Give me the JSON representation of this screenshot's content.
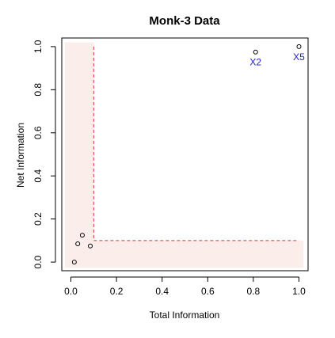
{
  "chart_data": {
    "type": "scatter",
    "title": "Monk-3 Data",
    "xlabel": "Total Information",
    "ylabel": "Net Information",
    "xlim": [
      -0.04,
      1.04
    ],
    "ylim": [
      -0.04,
      1.04
    ],
    "x_ticks": [
      0.0,
      0.2,
      0.4,
      0.6,
      0.8,
      1.0
    ],
    "x_tick_labels": [
      "0.0",
      "0.2",
      "0.4",
      "0.6",
      "0.8",
      "1.0"
    ],
    "y_ticks": [
      0.0,
      0.2,
      0.4,
      0.6,
      0.8,
      1.0
    ],
    "y_tick_labels": [
      "0.0",
      "0.2",
      "0.4",
      "0.6",
      "0.8",
      "1.0"
    ],
    "grid": false,
    "legend": "none",
    "points": [
      {
        "x": 0.015,
        "y": 0.0,
        "label": ""
      },
      {
        "x": 0.03,
        "y": 0.085,
        "label": ""
      },
      {
        "x": 0.05,
        "y": 0.125,
        "label": ""
      },
      {
        "x": 0.085,
        "y": 0.075,
        "label": ""
      },
      {
        "x": 0.81,
        "y": 0.975,
        "label": "X2"
      },
      {
        "x": 1.0,
        "y": 1.0,
        "label": "X5"
      }
    ],
    "threshold": {
      "x": 0.1,
      "y": 0.1
    },
    "colors": {
      "shaded_region": "#fbeeea",
      "threshold_line": "#e03030",
      "point_label": "#2020d0",
      "point_stroke": "#000000",
      "axes": "#000000"
    }
  }
}
